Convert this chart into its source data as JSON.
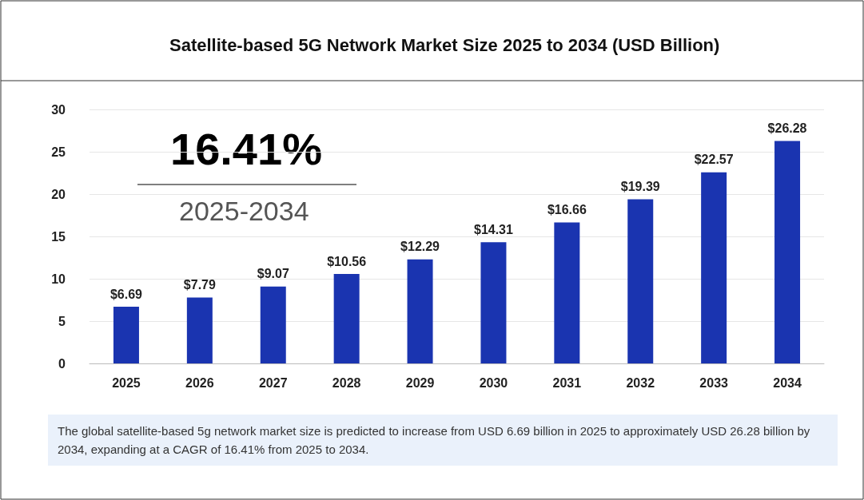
{
  "chart_data": {
    "type": "bar",
    "title": "Satellite-based 5G Network Market Size 2025 to 2034 (USD Billion)",
    "categories": [
      "2025",
      "2026",
      "2027",
      "2028",
      "2029",
      "2030",
      "2031",
      "2032",
      "2033",
      "2034"
    ],
    "values": [
      6.69,
      7.79,
      9.07,
      10.56,
      12.29,
      14.31,
      16.66,
      19.39,
      22.57,
      26.28
    ],
    "value_labels": [
      "$6.69",
      "$7.79",
      "$9.07",
      "$10.56",
      "$12.29",
      "$14.31",
      "$16.66",
      "$19.39",
      "$22.57",
      "$26.28"
    ],
    "color": "#1a34b0",
    "ylim": [
      0,
      30
    ],
    "yticks": [
      0,
      5,
      10,
      15,
      20,
      25,
      30
    ],
    "grid": "y",
    "annotations": [
      "16.41%",
      "2025-2034",
      "The global satellite-based 5g network market size is predicted to increase from USD 6.69 billion in 2025 to approximately USD 26.28 billion by 2034, expanding at a CAGR of 16.41% from 2025 to 2034."
    ]
  }
}
